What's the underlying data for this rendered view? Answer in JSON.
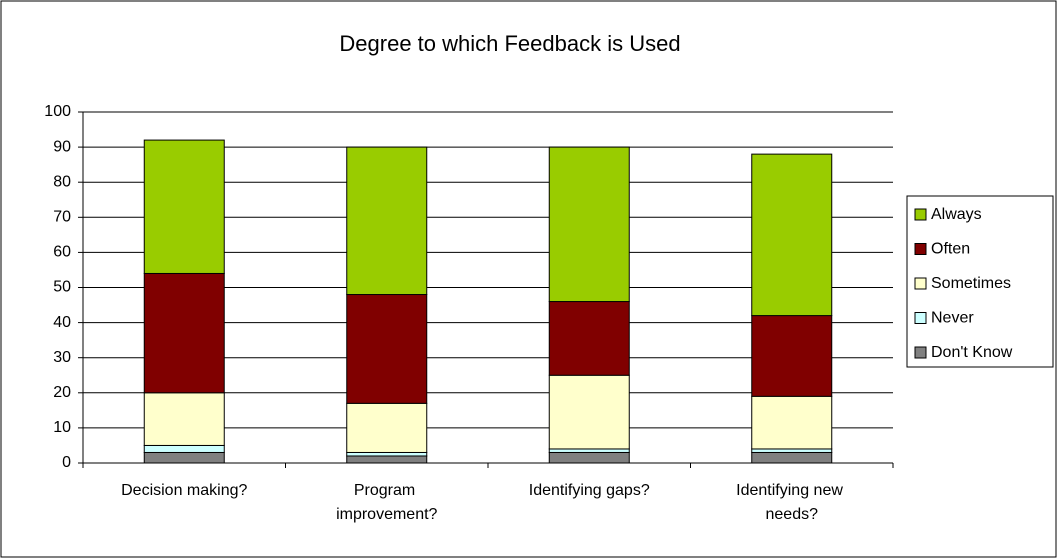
{
  "chart_data": {
    "type": "stacked_bar",
    "title": "Degree to which Feedback is Used",
    "categories": [
      "Decision making?",
      "Program improvement?",
      "Identifying gaps?",
      "Identifying new needs?"
    ],
    "series": [
      {
        "name": "Don't Know",
        "color": "#808080",
        "values": [
          3,
          2,
          3,
          3
        ]
      },
      {
        "name": "Never",
        "color": "#ccffff",
        "values": [
          2,
          1,
          1,
          1
        ]
      },
      {
        "name": "Sometimes",
        "color": "#ffffcc",
        "values": [
          15,
          14,
          21,
          15
        ]
      },
      {
        "name": "Often",
        "color": "#800000",
        "values": [
          34,
          31,
          21,
          23
        ]
      },
      {
        "name": "Always",
        "color": "#99cc00",
        "values": [
          38,
          42,
          44,
          46
        ]
      }
    ],
    "ylim": [
      0,
      100
    ],
    "yticks": [
      0,
      10,
      20,
      30,
      40,
      50,
      60,
      70,
      80,
      90,
      100
    ],
    "grid": true,
    "legend": "right"
  }
}
